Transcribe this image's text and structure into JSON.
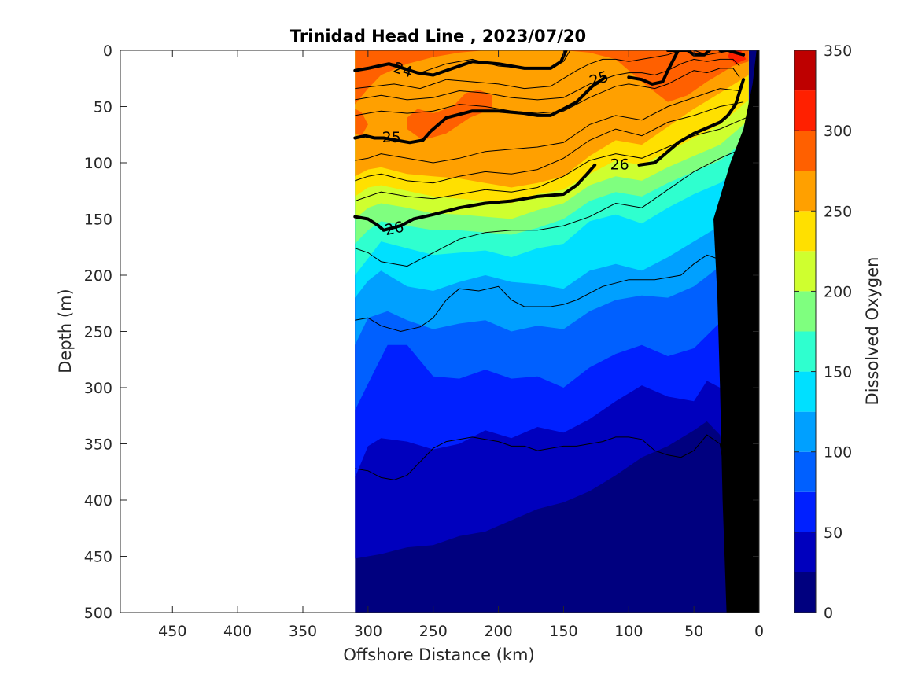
{
  "chart_data": {
    "type": "heatmap",
    "title": "Trinidad Head Line , 2023/07/20",
    "xlabel": "Offshore Distance (km)",
    "ylabel": "Depth (m)",
    "colorbar_label": "Dissolved Oxygen",
    "xlim": [
      490,
      0
    ],
    "ylim": [
      0,
      500
    ],
    "x_reversed": true,
    "y_reversed": true,
    "x_ticks": [
      450,
      400,
      350,
      300,
      250,
      200,
      150,
      100,
      50,
      0
    ],
    "y_ticks": [
      0,
      50,
      100,
      150,
      200,
      250,
      300,
      350,
      400,
      450,
      500
    ],
    "data_extent_x": [
      310,
      0
    ],
    "colorbar": {
      "range": [
        0,
        350
      ],
      "ticks": [
        0,
        50,
        100,
        150,
        200,
        250,
        300,
        350
      ],
      "level_step": 25,
      "colors": [
        "#00007f",
        "#0000be",
        "#0020ff",
        "#0060ff",
        "#00a0ff",
        "#00e0ff",
        "#2fffcf",
        "#7fff7f",
        "#cfff2f",
        "#ffe000",
        "#ffa000",
        "#ff6000",
        "#ff2000",
        "#be0000"
      ]
    },
    "oxygen_level_boundaries": [
      {
        "level": 25,
        "x": [
          310,
          290,
          270,
          250,
          230,
          210,
          190,
          170,
          150,
          130,
          110,
          90,
          70,
          50,
          40,
          30,
          25
        ],
        "depth": [
          452,
          448,
          442,
          440,
          432,
          428,
          418,
          408,
          402,
          392,
          378,
          362,
          352,
          338,
          330,
          342,
          378
        ]
      },
      {
        "level": 50,
        "x": [
          310,
          300,
          290,
          270,
          250,
          230,
          210,
          190,
          170,
          150,
          130,
          110,
          90,
          70,
          50,
          40,
          30,
          22
        ],
        "depth": [
          380,
          352,
          345,
          348,
          355,
          350,
          338,
          345,
          335,
          340,
          328,
          312,
          298,
          308,
          312,
          294,
          300,
          380
        ]
      },
      {
        "level": 75,
        "x": [
          310,
          295,
          285,
          270,
          250,
          230,
          210,
          190,
          170,
          150,
          130,
          110,
          90,
          70,
          50,
          30,
          15
        ],
        "depth": [
          320,
          285,
          262,
          262,
          290,
          292,
          284,
          292,
          290,
          300,
          282,
          270,
          262,
          272,
          265,
          242,
          220
        ]
      },
      {
        "level": 100,
        "x": [
          310,
          300,
          285,
          270,
          250,
          230,
          210,
          190,
          170,
          150,
          130,
          110,
          90,
          70,
          50,
          30,
          12
        ],
        "depth": [
          262,
          238,
          232,
          240,
          248,
          243,
          240,
          250,
          245,
          248,
          232,
          222,
          218,
          220,
          210,
          192,
          168
        ]
      },
      {
        "level": 125,
        "x": [
          310,
          300,
          290,
          270,
          250,
          230,
          210,
          190,
          170,
          150,
          130,
          110,
          90,
          70,
          50,
          30,
          10
        ],
        "depth": [
          220,
          205,
          196,
          210,
          214,
          206,
          200,
          206,
          208,
          212,
          196,
          190,
          196,
          184,
          170,
          156,
          140
        ]
      },
      {
        "level": 150,
        "x": [
          310,
          300,
          290,
          270,
          250,
          230,
          210,
          190,
          170,
          150,
          130,
          110,
          90,
          70,
          50,
          30,
          8
        ],
        "depth": [
          200,
          185,
          170,
          176,
          182,
          180,
          178,
          184,
          176,
          172,
          152,
          146,
          154,
          140,
          128,
          118,
          98
        ]
      },
      {
        "level": 175,
        "x": [
          310,
          300,
          290,
          270,
          250,
          230,
          210,
          190,
          170,
          150,
          130,
          110,
          90,
          70,
          50,
          30,
          8
        ],
        "depth": [
          172,
          160,
          152,
          156,
          160,
          160,
          162,
          164,
          158,
          150,
          134,
          126,
          130,
          118,
          108,
          98,
          78
        ]
      },
      {
        "level": 200,
        "x": [
          310,
          300,
          290,
          270,
          250,
          230,
          210,
          190,
          170,
          150,
          130,
          110,
          90,
          70,
          50,
          30,
          8
        ],
        "depth": [
          150,
          140,
          136,
          140,
          145,
          146,
          148,
          150,
          142,
          136,
          120,
          112,
          116,
          104,
          94,
          84,
          62
        ]
      },
      {
        "level": 225,
        "x": [
          310,
          300,
          290,
          270,
          250,
          230,
          210,
          190,
          170,
          150,
          130,
          110,
          90,
          70,
          50,
          30,
          8
        ],
        "depth": [
          130,
          122,
          120,
          125,
          130,
          132,
          134,
          136,
          128,
          124,
          110,
          98,
          102,
          90,
          78,
          66,
          44
        ]
      },
      {
        "level": 250,
        "x": [
          310,
          300,
          290,
          270,
          250,
          230,
          210,
          190,
          170,
          150,
          130,
          110,
          90,
          70,
          50,
          30,
          8
        ],
        "depth": [
          112,
          106,
          104,
          110,
          112,
          114,
          118,
          122,
          118,
          112,
          94,
          80,
          84,
          68,
          52,
          38,
          22
        ]
      },
      {
        "level": 275,
        "x": [
          310,
          300,
          290,
          270,
          250,
          230,
          210,
          190,
          170,
          150,
          130,
          110,
          90,
          70,
          55,
          40,
          20,
          8
        ],
        "depth": [
          48,
          34,
          22,
          12,
          6,
          2,
          0,
          0,
          0,
          0,
          2,
          8,
          28,
          46,
          40,
          28,
          14,
          10
        ]
      }
    ],
    "high_oxygen_patches": [
      {
        "min_level": 275,
        "x": [
          310,
          305,
          300,
          305,
          310
        ],
        "depth": [
          52,
          55,
          66,
          76,
          74
        ]
      },
      {
        "min_level": 275,
        "x": [
          270,
          262,
          250,
          235,
          225,
          215,
          205,
          205,
          222,
          240,
          258,
          270
        ],
        "depth": [
          60,
          52,
          56,
          50,
          38,
          35,
          40,
          52,
          60,
          74,
          80,
          70
        ]
      },
      {
        "min_level": 300,
        "x": [
          22,
          14,
          10,
          18,
          24
        ],
        "depth": [
          0,
          0,
          8,
          12,
          6
        ]
      }
    ],
    "density_contours": [
      {
        "x": [
          310,
          290,
          280,
          260,
          240,
          220,
          200,
          180,
          160,
          150,
          145
        ],
        "depth": [
          18,
          14,
          12,
          20,
          12,
          8,
          14,
          16,
          16,
          10,
          0
        ]
      },
      {
        "x": [
          310,
          280,
          260,
          250,
          240,
          220,
          200,
          180,
          160,
          140,
          130,
          120,
          110,
          100,
          90,
          80,
          70,
          60,
          50,
          40,
          30,
          20
        ],
        "depth": [
          34,
          30,
          34,
          30,
          26,
          28,
          30,
          34,
          32,
          18,
          12,
          8,
          8,
          10,
          8,
          6,
          4,
          0,
          0,
          4,
          2,
          0
        ]
      },
      {
        "x": [
          310,
          290,
          270,
          250,
          230,
          210,
          190,
          170,
          150,
          130,
          110,
          100,
          90,
          80,
          70,
          60,
          50,
          40,
          30,
          20,
          15
        ],
        "depth": [
          44,
          40,
          44,
          42,
          36,
          38,
          42,
          44,
          42,
          30,
          22,
          20,
          20,
          22,
          18,
          12,
          8,
          10,
          8,
          8,
          14
        ]
      },
      {
        "x": [
          310,
          290,
          270,
          250,
          230,
          210,
          190,
          170,
          150,
          130,
          110,
          100,
          90,
          80,
          70,
          60,
          50,
          40,
          30,
          20,
          15
        ],
        "depth": [
          58,
          54,
          56,
          54,
          48,
          50,
          54,
          56,
          54,
          42,
          32,
          30,
          32,
          34,
          30,
          24,
          18,
          20,
          16,
          16,
          24
        ]
      },
      {
        "x": [
          310,
          300,
          290,
          270,
          250,
          230,
          210,
          190,
          170,
          150,
          130,
          110,
          90,
          70,
          50,
          30,
          15
        ],
        "depth": [
          98,
          96,
          92,
          96,
          100,
          96,
          90,
          88,
          86,
          82,
          66,
          58,
          62,
          50,
          42,
          34,
          36
        ]
      },
      {
        "x": [
          310,
          300,
          290,
          270,
          250,
          230,
          210,
          190,
          170,
          150,
          130,
          110,
          90,
          70,
          50,
          30,
          12
        ],
        "depth": [
          116,
          112,
          110,
          116,
          118,
          112,
          108,
          110,
          106,
          96,
          80,
          70,
          76,
          64,
          58,
          50,
          46
        ]
      },
      {
        "x": [
          310,
          300,
          290,
          270,
          250,
          230,
          210,
          190,
          170,
          150,
          130,
          110,
          90,
          70,
          50,
          30,
          10
        ],
        "depth": [
          134,
          130,
          126,
          130,
          132,
          128,
          124,
          126,
          122,
          112,
          98,
          92,
          96,
          86,
          76,
          70,
          60
        ]
      },
      {
        "x": [
          310,
          300,
          290,
          270,
          250,
          230,
          210,
          190,
          170,
          150,
          130,
          110,
          90,
          70,
          50,
          30,
          10
        ],
        "depth": [
          176,
          180,
          188,
          192,
          180,
          168,
          162,
          160,
          160,
          156,
          148,
          136,
          140,
          124,
          108,
          96,
          86
        ]
      },
      {
        "x": [
          310,
          300,
          290,
          275,
          260,
          250,
          240,
          230,
          215,
          200,
          190,
          180,
          170,
          160,
          150,
          140,
          130,
          120,
          100,
          80,
          60,
          50,
          40,
          30,
          22
        ],
        "depth": [
          240,
          238,
          245,
          250,
          246,
          238,
          222,
          212,
          214,
          210,
          222,
          228,
          228,
          228,
          226,
          222,
          216,
          210,
          204,
          204,
          200,
          190,
          182,
          186,
          222
        ]
      },
      {
        "x": [
          310,
          300,
          290,
          280,
          270,
          260,
          250,
          240,
          230,
          220,
          210,
          200,
          190,
          180,
          170,
          160,
          150,
          140,
          130,
          120,
          110,
          100,
          90,
          80,
          70,
          60,
          50,
          40,
          30,
          24
        ],
        "depth": [
          372,
          374,
          380,
          382,
          378,
          366,
          354,
          348,
          346,
          344,
          346,
          348,
          352,
          352,
          356,
          354,
          352,
          352,
          350,
          348,
          344,
          344,
          346,
          356,
          360,
          362,
          356,
          342,
          350,
          390
        ]
      }
    ],
    "highlighted_density_contours": [
      {
        "label": "24",
        "x": [
          310,
          300,
          292,
          284,
          262,
          250,
          235,
          220,
          200,
          180,
          160,
          152,
          148
        ],
        "depth": [
          18,
          16,
          14,
          12,
          20,
          22,
          16,
          10,
          12,
          16,
          16,
          10,
          0
        ]
      },
      {
        "label": "24",
        "x": [
          70,
          66,
          55,
          50,
          42,
          40,
          38
        ],
        "depth": [
          0,
          0,
          0,
          4,
          4,
          2,
          0
        ]
      },
      {
        "label": "25",
        "x": [
          310,
          302,
          295,
          288,
          268,
          258,
          252,
          240,
          220,
          200,
          180,
          170,
          160,
          150,
          140,
          128,
          118
        ],
        "depth": [
          78,
          76,
          78,
          78,
          82,
          80,
          72,
          60,
          54,
          54,
          56,
          58,
          58,
          52,
          46,
          32,
          24
        ]
      },
      {
        "label": "25",
        "x": [
          100,
          90,
          82,
          74,
          70,
          62
        ],
        "depth": [
          24,
          26,
          30,
          28,
          18,
          0
        ]
      },
      {
        "label": "25",
        "x": [
          30,
          24,
          18,
          12
        ],
        "depth": [
          0,
          0,
          2,
          4
        ]
      },
      {
        "label": "26",
        "x": [
          310,
          300,
          292,
          288,
          275,
          265,
          250,
          230,
          210,
          190,
          170,
          150,
          140,
          132,
          126
        ],
        "depth": [
          148,
          150,
          156,
          160,
          156,
          150,
          146,
          140,
          136,
          134,
          130,
          128,
          120,
          110,
          102
        ]
      },
      {
        "label": "26",
        "x": [
          92,
          80,
          72,
          62,
          50,
          42,
          30,
          24,
          18,
          12
        ],
        "depth": [
          102,
          100,
          92,
          82,
          74,
          70,
          64,
          58,
          48,
          26
        ]
      }
    ],
    "contour_labels": [
      {
        "text": "24",
        "x": 273,
        "depth": 17,
        "rotation": 18
      },
      {
        "text": "25",
        "x": 282,
        "depth": 77,
        "rotation": 0
      },
      {
        "text": "26",
        "x": 280,
        "depth": 158,
        "rotation": -12
      },
      {
        "text": "25",
        "x": 123,
        "depth": 25,
        "rotation": -18
      },
      {
        "text": "26",
        "x": 107,
        "depth": 101,
        "rotation": 0
      }
    ],
    "bathymetry": {
      "x": [
        0,
        0,
        25,
        28,
        30,
        32,
        35,
        22,
        12,
        5,
        2
      ],
      "depth": [
        0,
        500,
        500,
        400,
        300,
        220,
        150,
        100,
        70,
        30,
        0
      ]
    }
  }
}
